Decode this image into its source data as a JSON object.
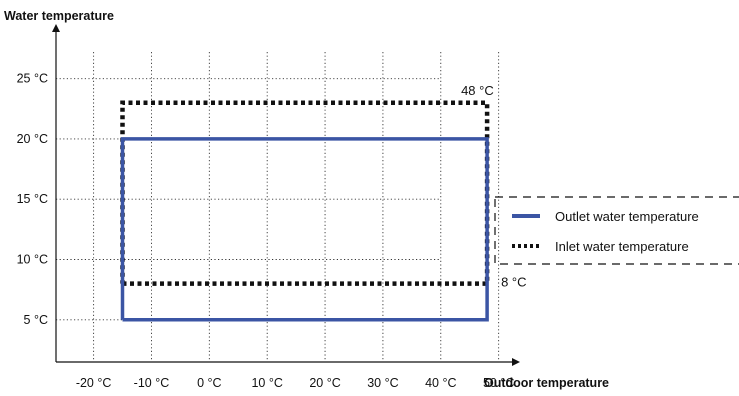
{
  "chart_data": {
    "type": "line",
    "ylabel": "Water temperature",
    "xlabel": "Outdoor temperature",
    "x_ticks": [
      "-20 °C",
      "-10 °C",
      "0 °C",
      "10 °C",
      "20 °C",
      "30 °C",
      "40 °C",
      "50 °C"
    ],
    "x_tick_values": [
      -20,
      -10,
      0,
      10,
      20,
      30,
      40,
      50
    ],
    "y_ticks": [
      "5 °C",
      "10 °C",
      "15 °C",
      "20 °C",
      "25 °C"
    ],
    "y_tick_values": [
      5,
      10,
      15,
      20,
      25
    ],
    "xlim": [
      -26.5,
      53
    ],
    "ylim": [
      1.5,
      29.2
    ],
    "grid": true,
    "grid_style": "dotted",
    "legend_position": "right",
    "series": [
      {
        "name": "Outlet water temperature",
        "color": "#3b55a4",
        "style": "solid",
        "x": [
          -15,
          48,
          48,
          -15,
          -15
        ],
        "y": [
          5,
          5,
          20,
          20,
          5
        ]
      },
      {
        "name": "Inlet water temperature",
        "color": "#111111",
        "style": "dotted",
        "x": [
          -15,
          48,
          48,
          -15,
          -15
        ],
        "y": [
          8,
          8,
          23,
          23,
          8
        ]
      }
    ],
    "annotations": [
      {
        "text": "48 °C",
        "x": 48,
        "y": 23
      },
      {
        "text": "8 °C",
        "x": 48,
        "y": 8
      }
    ]
  }
}
